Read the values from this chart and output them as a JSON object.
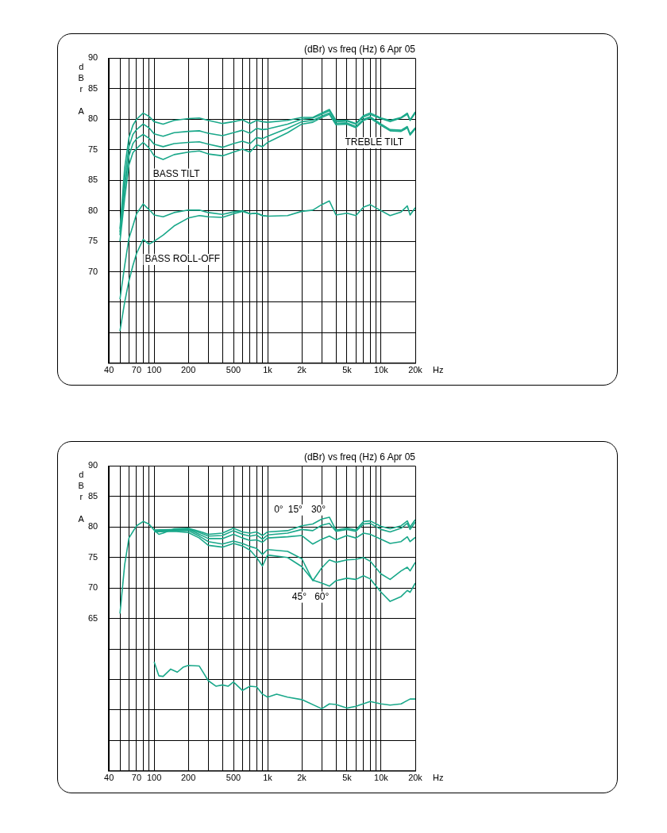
{
  "chart_data": [
    {
      "type": "line",
      "title": "(dBr) vs freq (Hz) 6 Apr 05",
      "xlabel": "Hz",
      "ylabel": "dBrA",
      "log": "x",
      "grid": true,
      "legend": false,
      "marker": "none",
      "line_style": "solid",
      "xlim": [
        40,
        20000
      ],
      "xticks": [
        40,
        {
          "value": 50,
          "label": null
        },
        {
          "value": 60,
          "label": null
        },
        70,
        {
          "value": 80,
          "label": null
        },
        {
          "value": 90,
          "label": null
        },
        100,
        200,
        {
          "value": 300,
          "label": null
        },
        {
          "value": 400,
          "label": null
        },
        500,
        {
          "value": 600,
          "label": null
        },
        {
          "value": 700,
          "label": null
        },
        {
          "value": 800,
          "label": null
        },
        {
          "value": 900,
          "label": null
        },
        {
          "value": 1000,
          "label": "1k"
        },
        {
          "value": 2000,
          "label": "2k"
        },
        {
          "value": 3000,
          "label": null
        },
        {
          "value": 4000,
          "label": null
        },
        {
          "value": 5000,
          "label": "5k"
        },
        {
          "value": 6000,
          "label": null
        },
        {
          "value": 7000,
          "label": null
        },
        {
          "value": 8000,
          "label": null
        },
        {
          "value": 9000,
          "label": null
        },
        {
          "value": 10000,
          "label": "10k"
        },
        {
          "value": 20000,
          "label": "20k"
        }
      ],
      "ylim": [
        40,
        90
      ],
      "yticks": [
        90,
        85,
        80,
        75,
        {
          "value": 70,
          "label": null
        },
        {
          "value": 65,
          "label": null
        },
        {
          "value": 60,
          "label": null
        },
        {
          "value": 55,
          "label": null
        },
        {
          "value": 50,
          "label": null
        },
        {
          "value": 45,
          "label": null
        },
        {
          "value": 40,
          "label": null
        }
      ],
      "y2lim": [
        55,
        105
      ],
      "y2ticks": [
        85,
        80,
        75,
        70
      ],
      "annotations": [
        "BASS TILT",
        "TREBLE TILT",
        "BASS ROLL-OFF"
      ],
      "series": [
        {
          "color": "#1aa88a",
          "x": [
            50,
            55,
            60,
            65,
            70,
            80,
            90,
            100,
            120,
            150,
            200,
            250,
            300,
            400,
            500,
            600,
            700,
            800,
            900,
            1000,
            1500,
            2000,
            2500,
            3000,
            3500,
            4000,
            5000,
            6000,
            7000,
            8000,
            10000,
            12000,
            15000,
            17000,
            18000,
            20000
          ],
          "values": [
            62,
            72,
            77,
            79,
            80,
            81,
            80.5,
            79.6,
            79.2,
            79.8,
            80.1,
            80.2,
            79.8,
            79.3,
            79.6,
            79.9,
            79.3,
            79.8,
            79.6,
            79.5,
            79.8,
            80.3,
            80.3,
            81,
            81.6,
            79.8,
            79.8,
            79.3,
            80.6,
            81,
            80.2,
            79.8,
            80.3,
            81,
            79.9,
            81.2
          ]
        },
        {
          "color": "#1aa88a",
          "x": [
            50,
            55,
            60,
            65,
            70,
            80,
            90,
            100,
            120,
            150,
            200,
            250,
            300,
            400,
            500,
            600,
            700,
            800,
            900,
            1000,
            1500,
            2000,
            2500,
            3000,
            3500,
            4000,
            5000,
            6000,
            7000,
            8000,
            10000,
            12000,
            15000,
            17000,
            18000,
            20000
          ],
          "values": [
            61.5,
            70,
            75.5,
            77.5,
            78.3,
            79.2,
            78.6,
            77.6,
            77.2,
            77.8,
            78,
            78.1,
            77.7,
            77.3,
            77.8,
            78.2,
            77.7,
            78.5,
            78.3,
            78.4,
            79.2,
            80,
            80.2,
            80.8,
            81.4,
            79.6,
            79.7,
            79.2,
            80.4,
            80.8,
            80.1,
            79.6,
            80.2,
            80.8,
            79.8,
            81
          ]
        },
        {
          "color": "#1aa88a",
          "x": [
            50,
            55,
            60,
            65,
            70,
            80,
            90,
            100,
            120,
            150,
            200,
            250,
            300,
            400,
            500,
            600,
            700,
            800,
            900,
            1000,
            1500,
            2000,
            2500,
            3000,
            3500,
            4000,
            5000,
            6000,
            7000,
            8000,
            10000,
            12000,
            15000,
            17000,
            18000,
            20000
          ],
          "values": [
            61,
            68.5,
            74,
            76,
            76.8,
            77.5,
            76.9,
            75.9,
            75.5,
            76,
            76.2,
            76.3,
            75.9,
            75.4,
            76,
            76.4,
            76,
            77,
            76.8,
            77.2,
            78.5,
            79.6,
            79.8,
            80.5,
            81,
            79.3,
            79.4,
            78.8,
            80,
            80.4,
            79.2,
            78.3,
            78.2,
            78.8,
            77.6,
            78.6
          ]
        },
        {
          "color": "#1aa88a",
          "x": [
            50,
            55,
            60,
            65,
            70,
            80,
            90,
            100,
            120,
            150,
            200,
            250,
            300,
            400,
            500,
            600,
            700,
            800,
            900,
            1000,
            1500,
            2000,
            2500,
            3000,
            3500,
            4000,
            5000,
            6000,
            7000,
            8000,
            10000,
            12000,
            15000,
            17000,
            18000,
            20000
          ],
          "values": [
            60,
            67,
            72.5,
            74.5,
            75.2,
            76.2,
            75.3,
            74,
            73.4,
            74.2,
            74.6,
            74.8,
            74.3,
            74,
            74.6,
            75.1,
            74.6,
            75.8,
            75.5,
            76.2,
            77.8,
            79.2,
            79.5,
            80.3,
            80.8,
            79.1,
            79.2,
            78.6,
            79.8,
            80.2,
            79,
            78.1,
            78,
            78.6,
            77.4,
            78.4
          ]
        },
        {
          "color": "#1aa88a",
          "axis": "y2",
          "x": [
            50,
            55,
            60,
            65,
            70,
            80,
            90,
            100,
            120,
            150,
            200,
            250,
            300,
            400,
            500,
            600,
            700,
            800,
            900,
            1000,
            1500,
            2000,
            2500,
            3000,
            3500,
            4000,
            5000,
            6000,
            7000,
            8000,
            10000,
            12000,
            15000,
            17000,
            18000,
            20000
          ],
          "values": [
            65.5,
            71,
            75.5,
            77.5,
            79.5,
            81.1,
            80.2,
            79.3,
            79,
            79.7,
            80.1,
            80.1,
            79.7,
            79.4,
            79.8,
            80,
            79.5,
            79.6,
            79.2,
            79.1,
            79.2,
            79.9,
            80.1,
            81,
            81.6,
            79.3,
            79.6,
            79.2,
            80.6,
            81,
            80,
            79.2,
            79.8,
            80.8,
            79.3,
            80.5
          ]
        },
        {
          "color": "#1aa88a",
          "axis": "y2",
          "x": [
            50,
            55,
            60,
            65,
            70,
            80,
            90,
            100,
            120,
            150,
            200,
            250,
            300,
            400,
            500,
            600,
            700,
            800,
            900,
            1000
          ],
          "values": [
            60.3,
            65,
            68.5,
            71,
            73,
            75.3,
            74.5,
            75,
            76,
            77.5,
            78.8,
            79.2,
            79,
            78.9,
            79.5,
            79.9,
            79.5,
            79.6,
            79.2,
            79.1
          ]
        }
      ]
    },
    {
      "type": "line",
      "title": "(dBr) vs freq (Hz) 6 Apr 05",
      "xlabel": "Hz",
      "ylabel": "dBrA",
      "log": "x",
      "grid": true,
      "legend": false,
      "marker": "none",
      "line_style": "solid",
      "xlim": [
        40,
        20000
      ],
      "xticks": [
        40,
        {
          "value": 50,
          "label": null
        },
        {
          "value": 60,
          "label": null
        },
        70,
        {
          "value": 80,
          "label": null
        },
        {
          "value": 90,
          "label": null
        },
        100,
        200,
        {
          "value": 300,
          "label": null
        },
        {
          "value": 400,
          "label": null
        },
        500,
        {
          "value": 600,
          "label": null
        },
        {
          "value": 700,
          "label": null
        },
        {
          "value": 800,
          "label": null
        },
        {
          "value": 900,
          "label": null
        },
        {
          "value": 1000,
          "label": "1k"
        },
        {
          "value": 2000,
          "label": "2k"
        },
        {
          "value": 3000,
          "label": null
        },
        {
          "value": 4000,
          "label": null
        },
        {
          "value": 5000,
          "label": "5k"
        },
        {
          "value": 6000,
          "label": null
        },
        {
          "value": 7000,
          "label": null
        },
        {
          "value": 8000,
          "label": null
        },
        {
          "value": 9000,
          "label": null
        },
        {
          "value": 10000,
          "label": "10k"
        },
        {
          "value": 20000,
          "label": "20k"
        }
      ],
      "ylim": [
        40,
        90
      ],
      "yticks": [
        90,
        85,
        80,
        75,
        70,
        65,
        {
          "value": 60,
          "label": null
        },
        {
          "value": 55,
          "label": null
        },
        {
          "value": 50,
          "label": null
        },
        {
          "value": 45,
          "label": null
        },
        {
          "value": 40,
          "label": null
        }
      ],
      "annotations": [
        {
          "text": "0°",
          "x": 1250,
          "y": 82.8
        },
        {
          "text": "15°",
          "x": 1750,
          "y": 82.8
        },
        {
          "text": "30°",
          "x": 2800,
          "y": 82.8
        },
        {
          "text": "45°",
          "x": 1900,
          "y": 68.5
        },
        {
          "text": "60°",
          "x": 3000,
          "y": 68.5
        }
      ],
      "series": [
        {
          "color": "#1aa88a",
          "x": [
            50,
            55,
            60,
            70,
            80,
            90,
            100,
            110,
            120,
            150,
            200,
            250,
            300,
            400,
            500,
            600,
            700,
            800,
            900,
            1000,
            1500,
            2000,
            2500,
            3000,
            3500,
            4000,
            5000,
            6000,
            7000,
            8000,
            10000,
            12000,
            15000,
            17000,
            18000,
            20000
          ],
          "values": [
            65.8,
            73.8,
            78.2,
            80.2,
            80.9,
            80.5,
            79.5,
            78.8,
            79,
            79.7,
            79.8,
            79.3,
            78.8,
            79,
            79.8,
            79.2,
            79,
            79.2,
            78.6,
            79.2,
            79.4,
            80.2,
            80.5,
            81.3,
            81.6,
            79.5,
            79.8,
            79.5,
            80.9,
            81,
            80.1,
            79.7,
            80.2,
            81,
            80,
            81.2
          ]
        },
        {
          "color": "#1aa88a",
          "x": [
            100,
            150,
            200,
            250,
            300,
            400,
            500,
            600,
            700,
            800,
            900,
            1000,
            1500,
            2000,
            2500,
            3000,
            3500,
            4000,
            5000,
            6000,
            7000,
            8000,
            10000,
            12000,
            15000,
            17000,
            18000,
            20000
          ],
          "values": [
            79.5,
            79.6,
            79.7,
            79.1,
            78.5,
            78.6,
            79.4,
            78.8,
            78.5,
            78.7,
            78,
            78.7,
            79,
            79.6,
            79.4,
            80.3,
            80.6,
            79.3,
            79.6,
            79.3,
            80.5,
            80.6,
            79.6,
            79.2,
            79.8,
            80.6,
            79.6,
            80.8
          ]
        },
        {
          "color": "#1aa88a",
          "x": [
            100,
            150,
            200,
            250,
            300,
            400,
            500,
            600,
            700,
            800,
            900,
            1000,
            1500,
            2000,
            2500,
            3000,
            3500,
            4000,
            5000,
            6000,
            7000,
            8000,
            10000,
            12000,
            15000,
            17000,
            18000,
            20000
          ],
          "values": [
            79.4,
            79.5,
            79.6,
            78.8,
            78.1,
            78.1,
            78.8,
            78.2,
            77.8,
            77.9,
            77.5,
            78.2,
            78.4,
            78.6,
            77.2,
            78,
            78.5,
            77.9,
            78.6,
            78.2,
            79,
            78.8,
            78,
            77.3,
            77.6,
            78.4,
            77.6,
            78.3
          ]
        },
        {
          "color": "#1aa88a",
          "x": [
            100,
            150,
            200,
            250,
            300,
            400,
            500,
            600,
            700,
            800,
            900,
            1000,
            1500,
            2000,
            2500,
            3000,
            3500,
            4000,
            5000,
            6000,
            7000,
            8000,
            10000,
            12000,
            15000,
            17000,
            18000,
            20000
          ],
          "values": [
            79.3,
            79.4,
            79.4,
            78.5,
            77.6,
            77.2,
            77.7,
            77.3,
            76.8,
            76.5,
            75.5,
            76.3,
            76,
            74.8,
            71.2,
            73.3,
            74.6,
            74.2,
            74.6,
            74.7,
            75,
            74.4,
            72.3,
            71.4,
            72.8,
            73.4,
            72.8,
            74.2
          ]
        },
        {
          "color": "#1aa88a",
          "x": [
            100,
            150,
            200,
            250,
            300,
            400,
            500,
            600,
            700,
            800,
            900,
            1000,
            1500,
            2000,
            2500,
            3000,
            3500,
            4000,
            5000,
            6000,
            7000,
            8000,
            10000,
            12000,
            15000,
            17000,
            18000,
            20000
          ],
          "values": [
            79.2,
            79.3,
            79.1,
            78.2,
            77,
            76.7,
            77.3,
            76.9,
            76.2,
            75,
            73.6,
            75.4,
            75,
            73.5,
            71.3,
            70.8,
            70.3,
            71.2,
            71.6,
            71.4,
            72,
            71.5,
            69.3,
            67.8,
            68.6,
            69.6,
            69.3,
            70.8
          ]
        },
        {
          "color": "#1aa88a",
          "x": [
            100,
            110,
            120,
            140,
            160,
            180,
            200,
            250,
            300,
            350,
            400,
            450,
            500,
            600,
            700,
            800,
            900,
            1000,
            1200,
            1500,
            2000,
            3000,
            3500,
            4000,
            5000,
            6000,
            8000,
            10000,
            12000,
            15000,
            18000,
            20000
          ],
          "values": [
            57.9,
            55.6,
            55.5,
            56.7,
            56.2,
            57,
            57.3,
            57.2,
            54.8,
            53.9,
            54.1,
            53.9,
            54.6,
            53.2,
            53.9,
            53.8,
            52.6,
            52.1,
            52.6,
            52.1,
            51.7,
            50.2,
            51,
            50.9,
            50.3,
            50.6,
            51.4,
            51,
            50.8,
            51,
            51.8,
            51.8
          ]
        }
      ]
    }
  ]
}
